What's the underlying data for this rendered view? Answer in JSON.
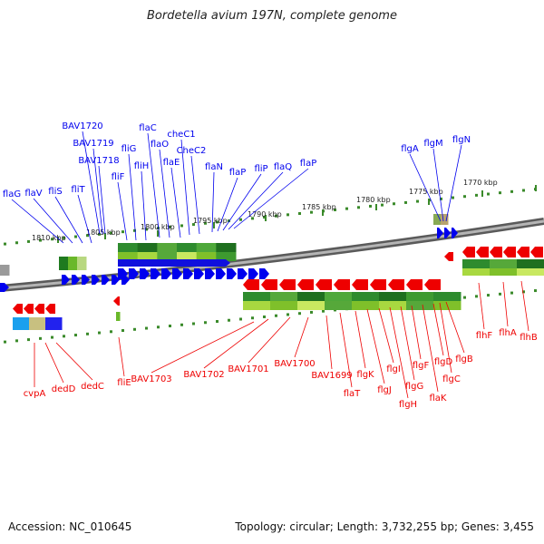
{
  "title": "Bordetella avium 197N, complete genome",
  "footer": {
    "accession": "Accession: NC_010645",
    "topology": "Topology: circular; Length: 3,732,255 bp; Genes: 3,455"
  },
  "colors": {
    "forward": "#0000ee",
    "reverse": "#ee0000",
    "backbone": "#888888",
    "ticks": "#3a8a2a"
  },
  "scale_labels": [
    "1810 kbp",
    "1805 kbp",
    "1800 kbp",
    "1795 kbp",
    "1790 kbp",
    "1785 kbp",
    "1780 kbp",
    "1775 kbp",
    "1770 kbp"
  ],
  "genes": {
    "forward": [
      "BAV1720",
      "BAV1719",
      "BAV1718",
      "flaG",
      "flaV",
      "fliS",
      "fliT",
      "fliG",
      "fliH",
      "fliF",
      "flaC",
      "flaO",
      "flaE",
      "cheC1",
      "CheC2",
      "flaN",
      "flaP",
      "fliP",
      "flaQ",
      "flaP",
      "flgA",
      "flgM",
      "flgN"
    ],
    "reverse": [
      "cvpA",
      "dedD",
      "dedC",
      "fliE",
      "BAV1703",
      "BAV1702",
      "BAV1701",
      "BAV1700",
      "BAV1699",
      "flaT",
      "flgK",
      "flgJ",
      "flgI",
      "flgH",
      "flgG",
      "flgF",
      "flaK",
      "flgD",
      "flgC",
      "flgB",
      "flhF",
      "flhA",
      "flhB"
    ]
  }
}
